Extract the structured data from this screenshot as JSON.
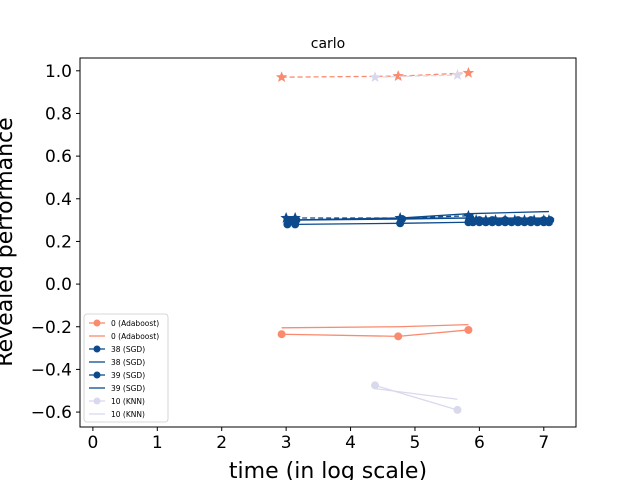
{
  "chart_data": {
    "type": "line",
    "title": "carlo",
    "xlabel": "time (in log scale)",
    "ylabel": "Revealed performance",
    "xlim": [
      -0.2,
      7.5
    ],
    "ylim": [
      -0.67,
      1.06
    ],
    "xticks": [
      0,
      1,
      2,
      3,
      4,
      5,
      6,
      7
    ],
    "xtick_labels": [
      "0",
      "1",
      "2",
      "3",
      "4",
      "5",
      "6",
      "7"
    ],
    "yticks": [
      1.0,
      0.8,
      0.6,
      0.4,
      0.2,
      0.0,
      -0.2,
      -0.4,
      -0.6
    ],
    "ytick_labels": [
      "1.0",
      "0.8",
      "0.6",
      "0.4",
      "0.2",
      "0.0",
      "−0.2",
      "−0.4",
      "−0.6"
    ],
    "grid": false,
    "legend_position": "lower-left",
    "legend": [
      {
        "label": "0 (Adaboost)",
        "color": "#fa8b6e",
        "style": "marker"
      },
      {
        "label": "0 (Adaboost)",
        "color": "#fa8b6e",
        "style": "line"
      },
      {
        "label": "38 (SGD)",
        "color": "#0c4a8c",
        "style": "marker"
      },
      {
        "label": "38 (SGD)",
        "color": "#0c4a8c",
        "style": "line"
      },
      {
        "label": "39 (SGD)",
        "color": "#0c4a8c",
        "style": "marker"
      },
      {
        "label": "39 (SGD)",
        "color": "#0c4a8c",
        "style": "line"
      },
      {
        "label": "10 (KNN)",
        "color": "#d9d9ee",
        "style": "marker"
      },
      {
        "label": "10 (KNN)",
        "color": "#d9d9ee",
        "style": "line"
      }
    ],
    "series": [
      {
        "name": "0 (Adaboost)",
        "kind": "marker-line",
        "marker": "circle",
        "color": "#fa8b6e",
        "x": [
          2.93,
          4.74,
          5.83
        ],
        "y": [
          -0.235,
          -0.245,
          -0.215
        ]
      },
      {
        "name": "0 (Adaboost)",
        "kind": "line",
        "color": "#fa8b6e",
        "x": [
          2.93,
          4.74,
          5.83
        ],
        "y": [
          -0.205,
          -0.2,
          -0.19
        ]
      },
      {
        "kind": "star-dashed",
        "marker": "star",
        "color": "#fa8b6e",
        "x": [
          2.93,
          4.74,
          5.83
        ],
        "y": [
          0.97,
          0.975,
          0.99
        ]
      },
      {
        "kind": "star-dashed",
        "marker": "star",
        "color": "#d9d9ee",
        "x": [
          4.38,
          5.66
        ],
        "y": [
          0.97,
          0.98
        ]
      },
      {
        "name": "38 (SGD)",
        "kind": "marker-line",
        "marker": "circle",
        "color": "#0c4a8c",
        "x": [
          3.02,
          3.14,
          4.77,
          5.83,
          5.9,
          6.0,
          6.1,
          6.2,
          6.3,
          6.4,
          6.5,
          6.6,
          6.7,
          6.8,
          6.9,
          7.0,
          7.08
        ],
        "y": [
          0.28,
          0.28,
          0.285,
          0.29,
          0.29,
          0.29,
          0.29,
          0.29,
          0.29,
          0.29,
          0.29,
          0.29,
          0.29,
          0.29,
          0.29,
          0.29,
          0.29
        ]
      },
      {
        "name": "38 (SGD)",
        "kind": "line",
        "color": "#0c4a8c",
        "x": [
          3.02,
          4.77,
          5.83,
          7.08
        ],
        "y": [
          0.3,
          0.31,
          0.33,
          0.34
        ]
      },
      {
        "name": "39 (SGD)",
        "kind": "marker-line",
        "marker": "circle",
        "color": "#0c4a8c",
        "x": [
          3.05,
          3.16,
          4.8,
          5.86,
          6.0,
          6.2,
          6.4,
          6.6,
          6.8,
          7.0,
          7.1
        ],
        "y": [
          0.3,
          0.3,
          0.305,
          0.31,
          0.3,
          0.3,
          0.3,
          0.3,
          0.3,
          0.3,
          0.3
        ]
      },
      {
        "name": "39 (SGD)",
        "kind": "line",
        "color": "#0c4a8c",
        "x": [
          3.05,
          4.8,
          5.86,
          7.1
        ],
        "y": [
          0.3,
          0.31,
          0.31,
          0.31
        ]
      },
      {
        "kind": "star-dashed",
        "marker": "star",
        "color": "#0c4a8c",
        "x": [
          3.0,
          3.14,
          4.77,
          5.83,
          5.95,
          6.1,
          6.25,
          6.4,
          6.55,
          6.7,
          6.85,
          7.0,
          7.08
        ],
        "y": [
          0.31,
          0.31,
          0.31,
          0.32,
          0.3,
          0.3,
          0.3,
          0.3,
          0.3,
          0.3,
          0.3,
          0.3,
          0.3
        ]
      },
      {
        "name": "10 (KNN)",
        "kind": "marker-line",
        "marker": "circle",
        "color": "#d9d9ee",
        "x": [
          4.38,
          5.66
        ],
        "y": [
          -0.475,
          -0.59
        ]
      },
      {
        "name": "10 (KNN)",
        "kind": "line",
        "color": "#d9d9ee",
        "x": [
          4.38,
          5.66
        ],
        "y": [
          -0.49,
          -0.54
        ]
      }
    ]
  }
}
